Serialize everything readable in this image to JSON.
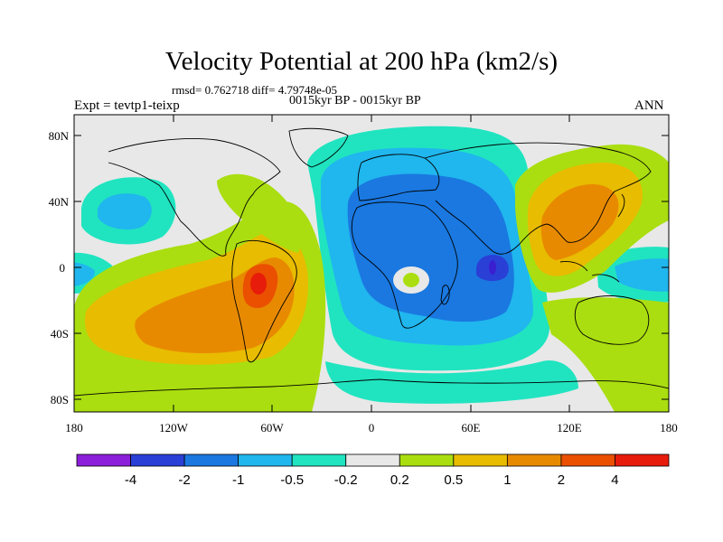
{
  "title": "Velocity Potential at 200 hPa (km2/s)",
  "stats": "rmsd= 0.762718 diff= 4.79748e-05",
  "expt": "Expt = tevtp1-teixp",
  "period": "0015kyr BP - 0015kyr BP",
  "season": "ANN",
  "lat_ticks": [
    "80N",
    "40N",
    "0",
    "40S",
    "80S"
  ],
  "lon_ticks": [
    "180",
    "120W",
    "60W",
    "0",
    "60E",
    "120E",
    "180"
  ],
  "colorbar": {
    "colors": [
      "#8c1fd9",
      "#2a3fd6",
      "#1a78e0",
      "#20b6ee",
      "#20e4c0",
      "#e8e8e8",
      "#aade10",
      "#e8bc00",
      "#e88a00",
      "#ea5000",
      "#e81c0a"
    ],
    "labels": [
      "-4",
      "-2",
      "-1",
      "-0.5",
      "-0.2",
      "0.2",
      "0.5",
      "1",
      "2",
      "4"
    ]
  }
}
